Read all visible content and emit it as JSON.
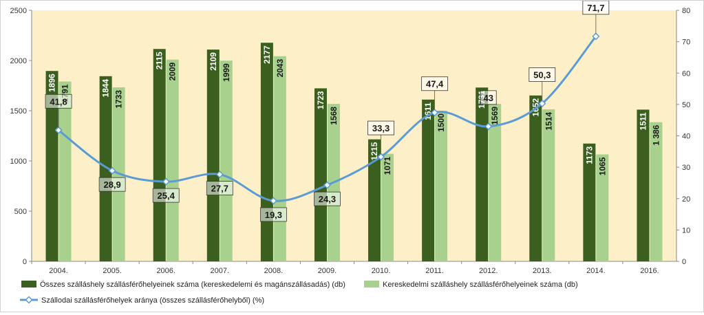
{
  "chart_data": {
    "type": "bar",
    "categories": [
      "2004.",
      "2005.",
      "2006.",
      "2007.",
      "2008.",
      "2009.",
      "2010.",
      "2011.",
      "2012.",
      "2013.",
      "2014.",
      "2016."
    ],
    "series": [
      {
        "name": "Összes szálláshely szállásférőhelyeinek száma (kereskedelemi és magánszállásadás) (db)",
        "type": "bar",
        "axis": "left",
        "color": "#3a5f1e",
        "values": [
          1896,
          1844,
          2115,
          2109,
          2177,
          1723,
          1215,
          1611,
          1731,
          1652,
          1173,
          1511
        ],
        "labels": [
          "1896",
          "1844",
          "2115",
          "2109",
          "2177",
          "1723",
          "1215",
          "1611",
          "1731",
          "1652",
          "1173",
          "1511"
        ]
      },
      {
        "name": "Kereskedelmi szálláshely szállásférőhelyeinek száma (db)",
        "type": "bar",
        "axis": "right-bar",
        "color": "#a9d18e",
        "values": [
          1791,
          1733,
          2009,
          1999,
          2043,
          1568,
          1071,
          1500,
          1569,
          1514,
          1065,
          1386
        ],
        "labels": [
          "1791",
          "1733",
          "2009",
          "1999",
          "2043",
          "1568",
          "1071",
          "1500",
          "1569",
          "1514",
          "1065",
          "1 386"
        ]
      },
      {
        "name": "Szállodai szállásférőhelyek aránya (összes szállásférőhelyből) (%)",
        "type": "line",
        "axis": "right",
        "color": "#5b9bd5",
        "values": [
          41.8,
          28.9,
          25.4,
          27.7,
          19.3,
          24.3,
          33.3,
          47.4,
          43,
          50.3,
          71.7,
          null
        ],
        "labels": [
          "41,8",
          "28,9",
          "25,4",
          "27,7",
          "19,3",
          "24,3",
          "33,3",
          "47,4",
          "43",
          "50,3",
          "71,7",
          ""
        ]
      }
    ],
    "y_left": {
      "min": 0,
      "max": 2500,
      "ticks": [
        "0",
        "500",
        "1000",
        "1500",
        "2000",
        "2500"
      ]
    },
    "y_right": {
      "min": 0,
      "max": 80,
      "ticks": [
        "0",
        "10",
        "20",
        "30",
        "40",
        "50",
        "60",
        "70",
        "80"
      ]
    },
    "plot_background": "#fdf0c8",
    "grid": false,
    "legend_position": "bottom"
  }
}
